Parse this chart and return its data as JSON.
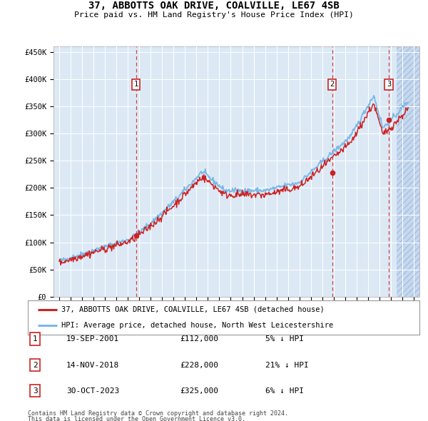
{
  "title": "37, ABBOTTS OAK DRIVE, COALVILLE, LE67 4SB",
  "subtitle": "Price paid vs. HM Land Registry's House Price Index (HPI)",
  "legend_line1": "37, ABBOTTS OAK DRIVE, COALVILLE, LE67 4SB (detached house)",
  "legend_line2": "HPI: Average price, detached house, North West Leicestershire",
  "transactions": [
    {
      "num": 1,
      "date": "19-SEP-2001",
      "price": 112000,
      "pct": "5%",
      "dir": "↓",
      "year_x": 2001.72
    },
    {
      "num": 2,
      "date": "14-NOV-2018",
      "price": 228000,
      "pct": "21%",
      "dir": "↓",
      "year_x": 2018.87
    },
    {
      "num": 3,
      "date": "30-OCT-2023",
      "price": 325000,
      "pct": "6%",
      "dir": "↓",
      "year_x": 2023.83
    }
  ],
  "footer1": "Contains HM Land Registry data © Crown copyright and database right 2024.",
  "footer2": "This data is licensed under the Open Government Licence v3.0.",
  "hpi_color": "#7ab8e8",
  "price_color": "#cc2222",
  "bg_color": "#dce9f5",
  "ylim": [
    0,
    460000
  ],
  "yticks": [
    0,
    50000,
    100000,
    150000,
    200000,
    250000,
    300000,
    350000,
    400000,
    450000
  ],
  "ylabels": [
    "£0",
    "£50K",
    "£100K",
    "£150K",
    "£200K",
    "£250K",
    "£300K",
    "£350K",
    "£400K",
    "£450K"
  ],
  "xmin": 1994.5,
  "xmax": 2026.5,
  "hatch_start": 2024.5
}
